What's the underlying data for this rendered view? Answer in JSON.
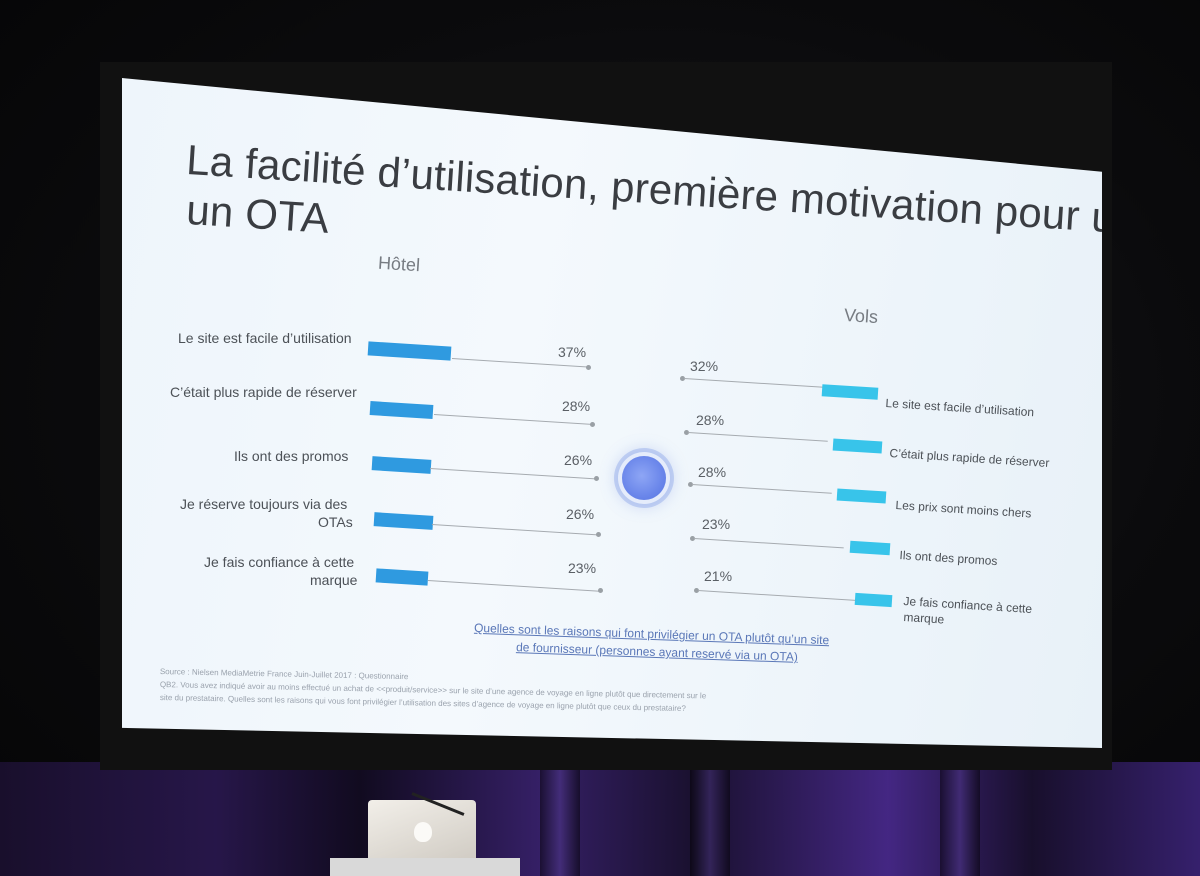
{
  "slide": {
    "title_line1": "La facilité d’utilisation, première motivation pour utiliser",
    "title_line2": "un OTA",
    "left_header": "Hôtel",
    "right_header": "Vols",
    "hotel": [
      {
        "label": "Le site est facile d’utilisation",
        "value": 37,
        "pct": "37%"
      },
      {
        "label": "C’était plus rapide de réserver",
        "value": 28,
        "pct": "28%"
      },
      {
        "label": "Ils ont des promos",
        "value": 26,
        "pct": "26%"
      },
      {
        "label1": "Je réserve toujours via des",
        "label2": "OTAs",
        "value": 26,
        "pct": "26%"
      },
      {
        "label1": "Je fais confiance à cette",
        "label2": "marque",
        "value": 23,
        "pct": "23%"
      }
    ],
    "vols": [
      {
        "label": "Le site est facile d’utilisation",
        "value": 32,
        "pct": "32%"
      },
      {
        "label": "C’était plus rapide de réserver",
        "value": 28,
        "pct": "28%"
      },
      {
        "label": "Les prix sont moins chers",
        "value": 28,
        "pct": "28%"
      },
      {
        "label": "Ils ont des promos",
        "value": 23,
        "pct": "23%"
      },
      {
        "label1": "Je fais confiance à cette",
        "label2": "marque",
        "value": 21,
        "pct": "21%"
      }
    ],
    "question_line1": "Quelles sont les raisons qui font privilégier un OTA plutôt qu’un site",
    "question_line2": "de fournisseur (personnes ayant reservé via un OTA)",
    "source_line1": "Source : Nielsen MediaMetrie France Juin-Juillet 2017 : Questionnaire",
    "source_line2": "QB2. Vous avez indiqué avoir au moins effectué un achat de <<produit/service>> sur le site d’une agence de voyage en ligne plutôt que directement sur le",
    "source_line3": "site du prestataire. Quelles sont les raisons qui vous font privilégier l’utilisation des sites d’agence de voyage en ligne plutôt que ceux du prestataire?"
  },
  "colors": {
    "hotel_bar": "#2f9ae0",
    "vols_bar": "#38c4ea",
    "center_dot": "#6a86ea"
  }
}
